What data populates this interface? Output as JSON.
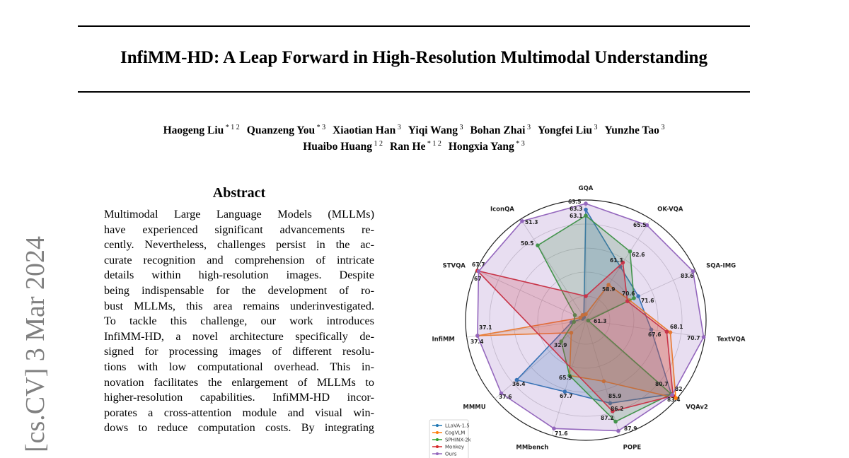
{
  "sidebar_stamp": "[cs.CV]  3 Mar 2024",
  "title": "InfiMM-HD: A Leap Forward in High-Resolution Multimodal Understanding",
  "authors_line1": [
    {
      "name": "Haogeng Liu",
      "sup": "* 1 2"
    },
    {
      "name": "Quanzeng You",
      "sup": "* 3"
    },
    {
      "name": "Xiaotian Han",
      "sup": "3"
    },
    {
      "name": "Yiqi Wang",
      "sup": "3"
    },
    {
      "name": "Bohan Zhai",
      "sup": "3"
    },
    {
      "name": "Yongfei Liu",
      "sup": "3"
    },
    {
      "name": "Yunzhe Tao",
      "sup": "3"
    }
  ],
  "authors_line2": [
    {
      "name": "Huaibo Huang",
      "sup": "1 2"
    },
    {
      "name": "Ran He",
      "sup": "* 1 2"
    },
    {
      "name": "Hongxia Yang",
      "sup": "* 3"
    }
  ],
  "abstract": {
    "heading": "Abstract",
    "lines": [
      "Multimodal Large Language Models (MLLMs)",
      "have experienced significant advancements re-",
      "cently. Nevertheless, challenges persist in the ac-",
      "curate recognition and comprehension of intricate",
      "details within high-resolution images. Despite",
      "being indispensable for the development of ro-",
      "bust MLLMs, this area remains underinvestigated.",
      "To tackle this challenge, our work introduces",
      "InfiMM-HD, a novel architecture specifically de-",
      "signed for processing images of different resolu-",
      "tions with low computational overhead. This in-",
      "novation facilitates the enlargement of MLLMs to",
      "higher-resolution capabilities. InfiMM-HD incor-",
      "porates a cross-attention module and visual win-",
      "dows to reduce computation costs. By integrating"
    ]
  },
  "chart_data": {
    "type": "radar",
    "axes": [
      "GQA",
      "OK-VQA",
      "SQA-IMG",
      "TextVQA",
      "VQAv2",
      "POPE",
      "MMbench",
      "MMMU",
      "InfiMM",
      "STVQA",
      "IconQA"
    ],
    "legend_position": "bottom-left",
    "grid": true,
    "series": [
      {
        "name": "LLaVA-1.5",
        "color": "#1f77b4",
        "labels": [
          63.3,
          null,
          71.6,
          null,
          null,
          85.9,
          67.7,
          36.4,
          null,
          null,
          null
        ]
      },
      {
        "name": "CogVLM",
        "color": "#ff7f0e",
        "labels": [
          null,
          58.9,
          null,
          68.1,
          82.0,
          null,
          null,
          null,
          37.1,
          null,
          null
        ]
      },
      {
        "name": "SPHINX-2k",
        "color": "#2ca02c",
        "labels": [
          63.1,
          62.6,
          null,
          61.3,
          80.7,
          87.2,
          65.9,
          32.9,
          null,
          null,
          50.5
        ]
      },
      {
        "name": "Monkey",
        "color": "#d62728",
        "labels": [
          null,
          61.3,
          70.6,
          67.6,
          null,
          86.2,
          null,
          null,
          null,
          67.7,
          null
        ]
      },
      {
        "name": "Ours",
        "color": "#9467bd",
        "labels": [
          63.5,
          65.5,
          83.6,
          70.7,
          83.4,
          87.9,
          71.6,
          37.6,
          37.4,
          67.0,
          51.3
        ]
      }
    ]
  }
}
